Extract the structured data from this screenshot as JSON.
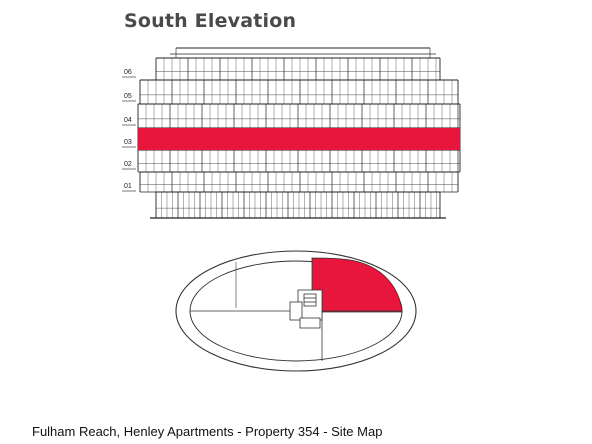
{
  "title": "South Elevation",
  "caption": "Fulham Reach, Henley Apartments - Property 354 - Site Map",
  "highlight_color": "#e8163c",
  "floors": [
    {
      "label": "06"
    },
    {
      "label": "05"
    },
    {
      "label": "04"
    },
    {
      "label": "03",
      "highlighted": true
    },
    {
      "label": "02"
    },
    {
      "label": "01"
    }
  ]
}
